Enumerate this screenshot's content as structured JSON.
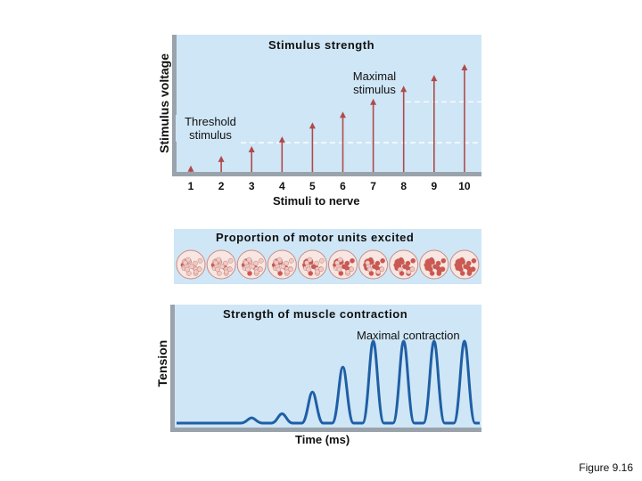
{
  "panel_a": {
    "title": "Stimulus strength",
    "y_label": "Stimulus voltage",
    "x_label": "Stimuli to nerve",
    "maximal_label_line1": "Maximal",
    "maximal_label_line2": "stimulus",
    "threshold_label_line1": "Threshold",
    "threshold_label_line2": "stimulus",
    "x_ticks": [
      "1",
      "2",
      "3",
      "4",
      "5",
      "6",
      "7",
      "8",
      "9",
      "10"
    ],
    "stimulus_levels": [
      0.06,
      0.15,
      0.24,
      0.33,
      0.46,
      0.56,
      0.68,
      0.8,
      0.9,
      1.0
    ],
    "arrow_color": "#b04a4a",
    "threshold_level": 0.27,
    "maximal_level": 0.65
  },
  "panel_b": {
    "title": "Proportion of motor units excited",
    "excited_fraction": [
      0.05,
      0.12,
      0.25,
      0.38,
      0.5,
      0.62,
      0.75,
      0.88,
      1.0,
      1.0
    ],
    "cell_color_resting": "#f2c9c4",
    "cell_color_excited": "#d2544e"
  },
  "panel_c": {
    "title": "Strength of muscle contraction",
    "y_label": "Tension",
    "x_label": "Time (ms)",
    "maximal_label": "Maximal contraction",
    "peak_levels": [
      0.0,
      0.0,
      0.05,
      0.09,
      0.3,
      0.54,
      0.79,
      0.79,
      0.79,
      0.79
    ],
    "curve_color": "#1f5fa5"
  },
  "figure_label": "Figure 9.16"
}
